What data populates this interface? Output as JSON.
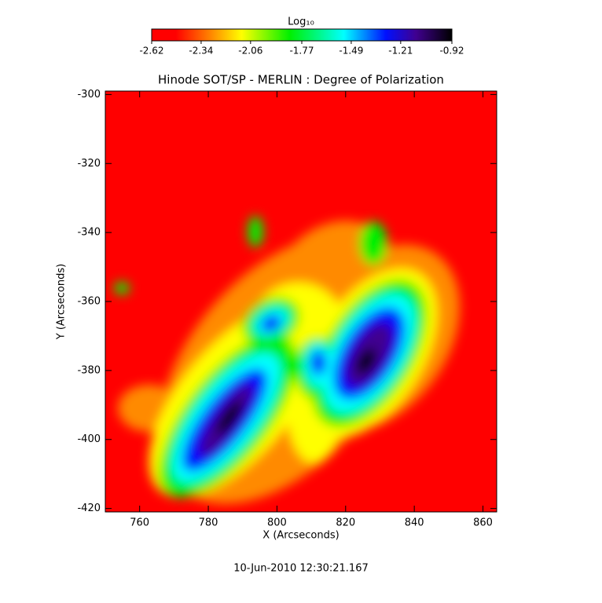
{
  "chart_data": {
    "type": "image",
    "title": "Hinode SOT/SP - MERLIN : Degree of Polarization",
    "x_label": "X (Arcseconds)",
    "y_label": "Y (Arcseconds)",
    "footer": "10-Jun-2010 12:30:21.167",
    "colorbar_label": "Log₁₀",
    "clim": [
      -2.62,
      -0.92
    ],
    "cticks": [
      -2.62,
      -2.34,
      -2.06,
      -1.77,
      -1.49,
      -1.21,
      -0.92
    ],
    "colormap": [
      "#ff0000",
      "#ff8a00",
      "#ffff00",
      "#00f000",
      "#00ffff",
      "#0010ff",
      "#400090",
      "#000000"
    ],
    "xlim": [
      750,
      864
    ],
    "xticks": [
      760,
      780,
      800,
      820,
      840,
      860
    ],
    "ylim": [
      -421,
      -299
    ],
    "yticks": [
      -300,
      -320,
      -340,
      -360,
      -380,
      -400,
      -420
    ]
  }
}
